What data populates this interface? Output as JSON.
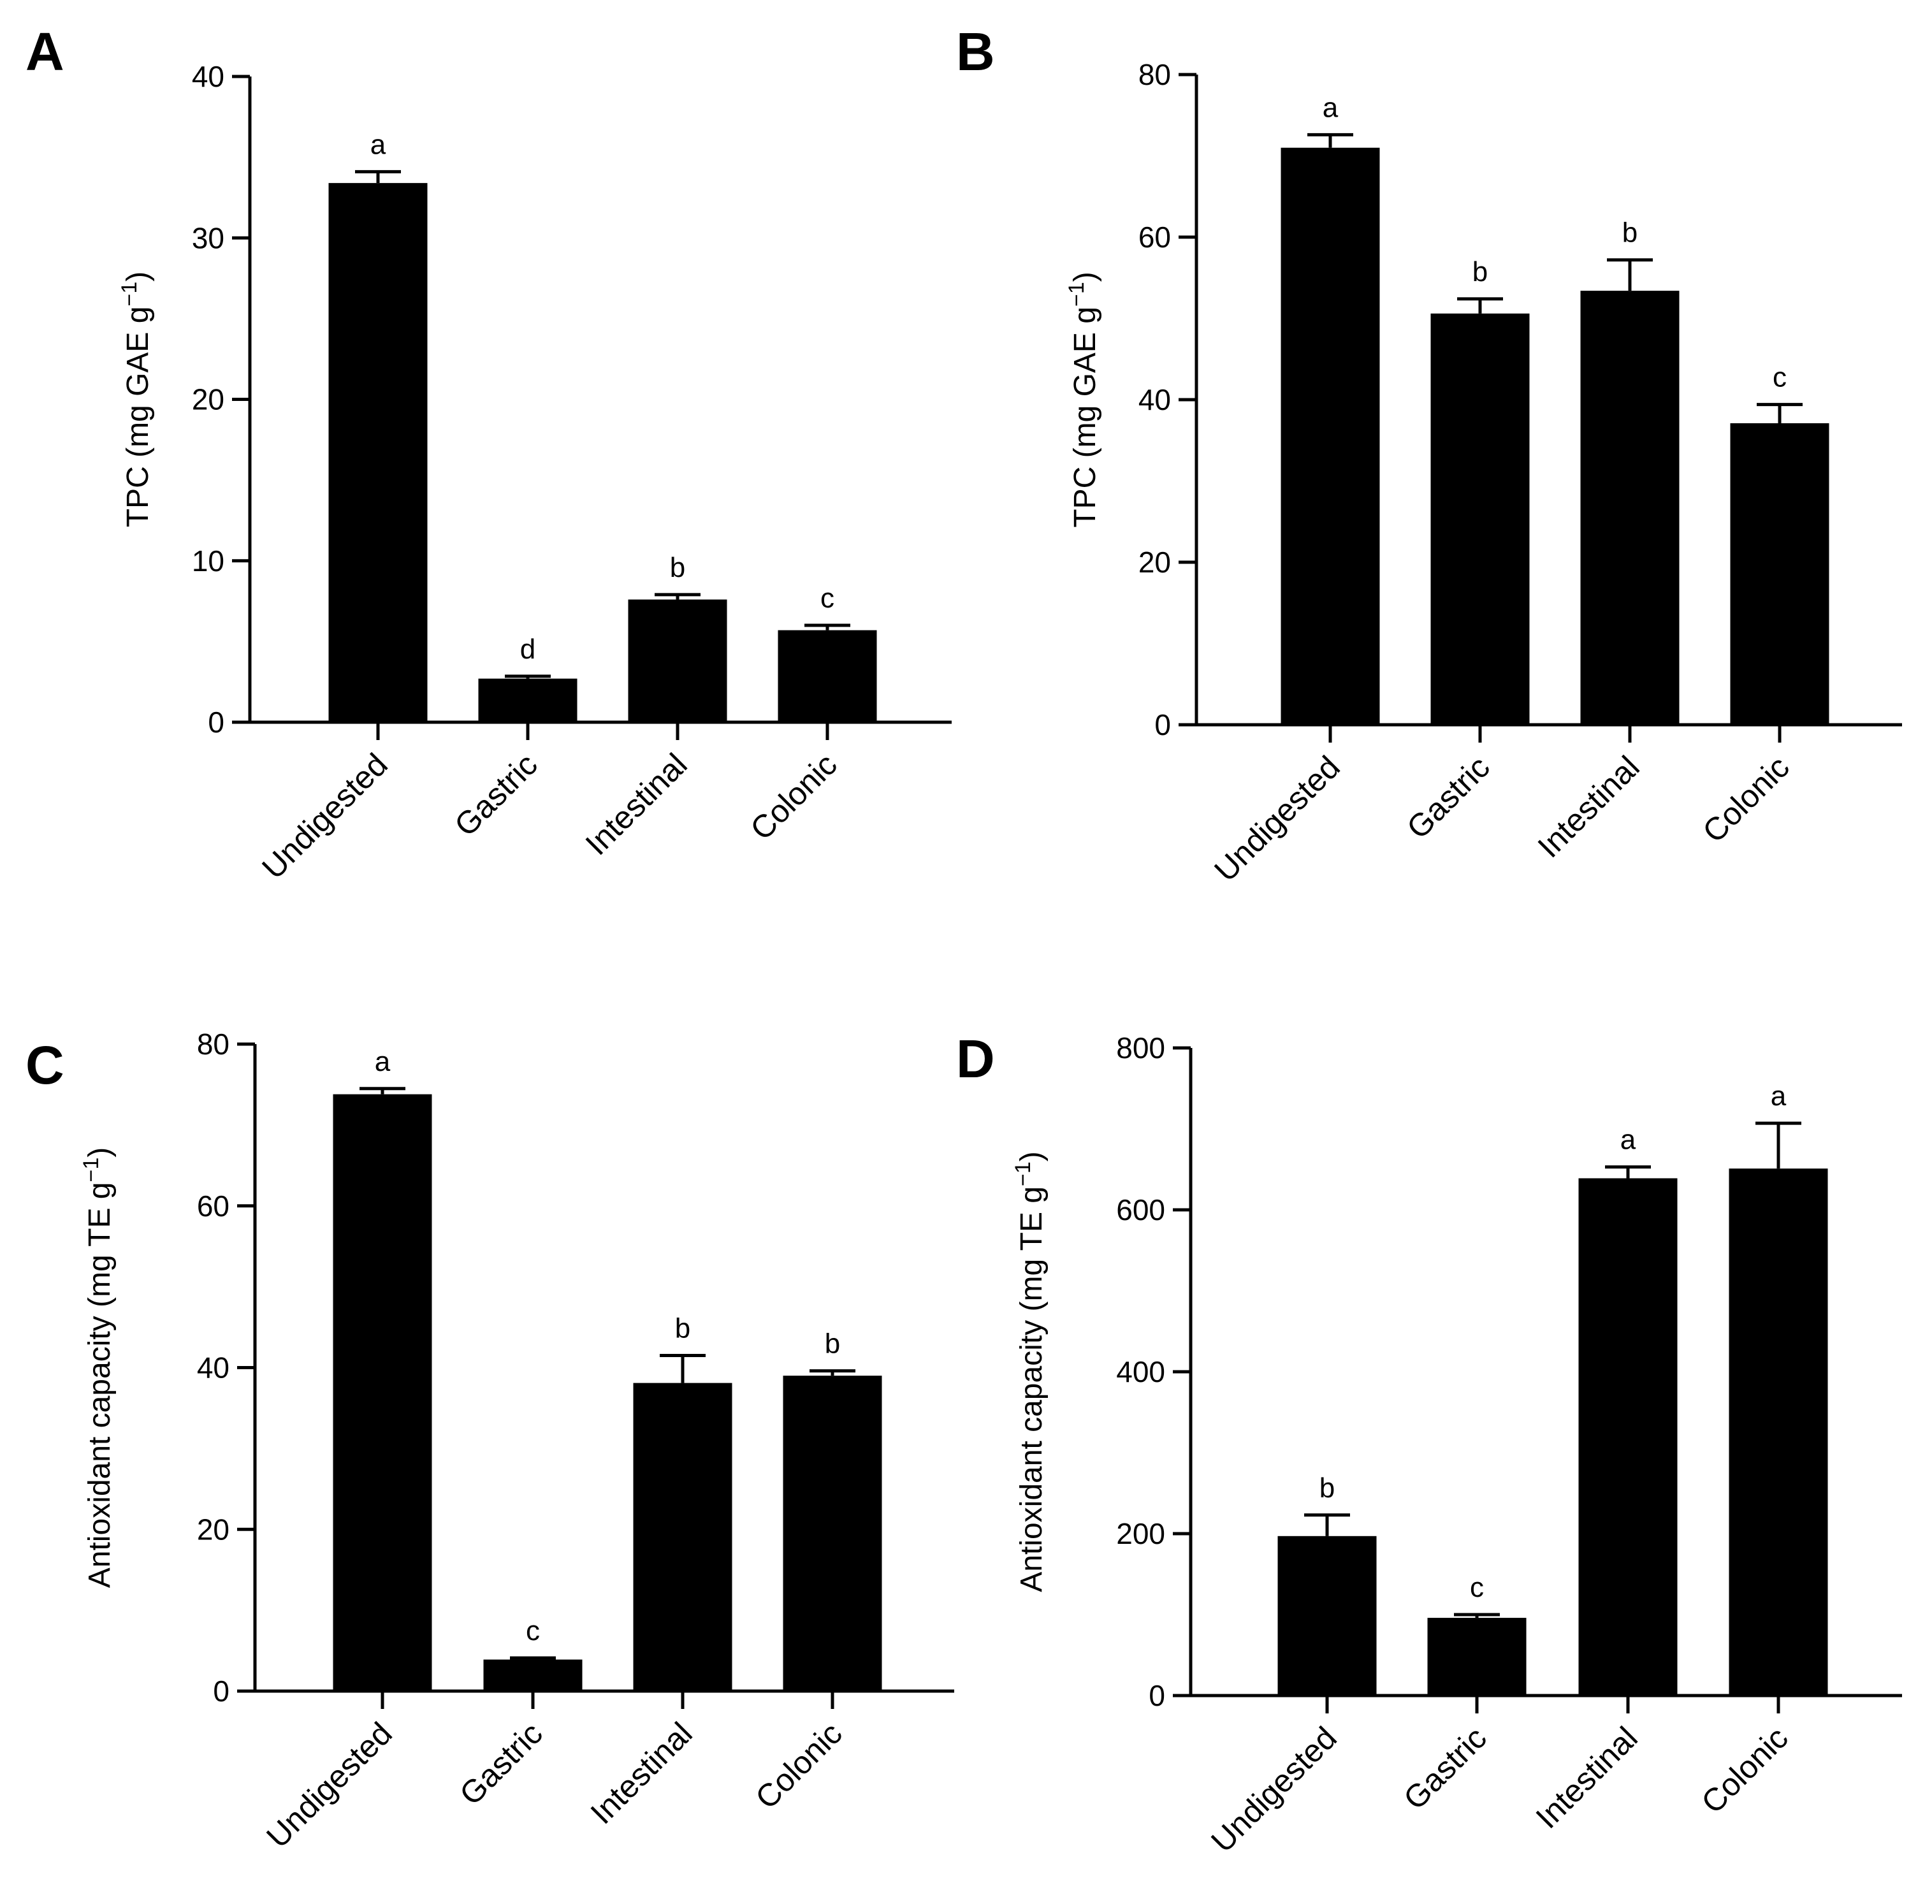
{
  "figure": {
    "background": "#ffffff",
    "bar_color": "#000000"
  },
  "chart_data": [
    {
      "panel": "A",
      "type": "bar",
      "title": "",
      "xlabel": "",
      "ylabel": "TPC (mg GAE g",
      "ylabel_superscript": "−1",
      "ylabel_close": ")",
      "ylim": [
        0,
        40
      ],
      "yticks": [
        0,
        10,
        20,
        30,
        40
      ],
      "categories": [
        "Undigested",
        "Gastric",
        "Intestinal",
        "Colonic"
      ],
      "values": [
        33.4,
        2.7,
        7.6,
        5.7
      ],
      "errors": [
        0.7,
        0.15,
        0.3,
        0.3
      ],
      "letters": [
        "a",
        "d",
        "b",
        "c"
      ]
    },
    {
      "panel": "B",
      "type": "bar",
      "title": "",
      "xlabel": "",
      "ylabel": "TPC (mg GAE g",
      "ylabel_superscript": "−1",
      "ylabel_close": ")",
      "ylim": [
        0,
        80
      ],
      "yticks": [
        0,
        20,
        40,
        60,
        80
      ],
      "categories": [
        "Undigested",
        "Gastric",
        "Intestinal",
        "Colonic"
      ],
      "values": [
        71.0,
        50.6,
        53.4,
        37.1
      ],
      "errors": [
        1.6,
        1.8,
        3.8,
        2.3
      ],
      "letters": [
        "a",
        "b",
        "b",
        "c"
      ]
    },
    {
      "panel": "C",
      "type": "bar",
      "title": "",
      "xlabel": "",
      "ylabel": "Antioxidant capacity (mg TE g",
      "ylabel_superscript": "−1",
      "ylabel_close": ")",
      "ylim": [
        0,
        80
      ],
      "yticks": [
        0,
        20,
        40,
        60,
        80
      ],
      "categories": [
        "Undigested",
        "Gastric",
        "Intestinal",
        "Colonic"
      ],
      "values": [
        73.8,
        3.9,
        38.1,
        39.0
      ],
      "errors": [
        0.7,
        0.2,
        3.4,
        0.6
      ],
      "letters": [
        "a",
        "c",
        "b",
        "b"
      ]
    },
    {
      "panel": "D",
      "type": "bar",
      "title": "",
      "xlabel": "",
      "ylabel": "Antioxidant capacity (mg TE g",
      "ylabel_superscript": "−1",
      "ylabel_close": ")",
      "ylim": [
        0,
        800
      ],
      "yticks": [
        0,
        200,
        400,
        600,
        800
      ],
      "categories": [
        "Undigested",
        "Gastric",
        "Intestinal",
        "Colonic"
      ],
      "values": [
        197,
        96,
        639,
        651
      ],
      "errors": [
        26,
        4,
        14,
        56
      ],
      "letters": [
        "b",
        "c",
        "a",
        "a"
      ]
    }
  ]
}
